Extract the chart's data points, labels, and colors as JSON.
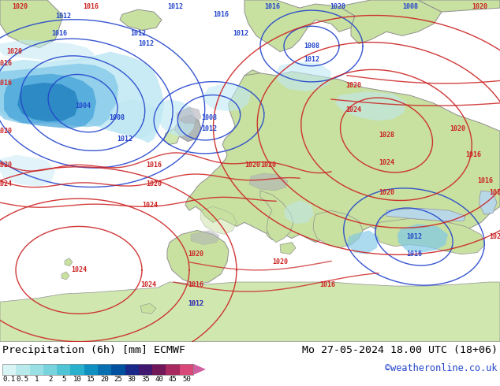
{
  "title_left": "Precipitation (6h) [mm] ECMWF",
  "title_right": "Mo 27-05-2024 18.00 UTC (18+06)",
  "watermark": "©weatheronline.co.uk",
  "colorbar_labels": [
    "0.1",
    "0.5",
    "1",
    "2",
    "5",
    "10",
    "15",
    "20",
    "25",
    "30",
    "35",
    "40",
    "45",
    "50"
  ],
  "colorbar_colors": [
    "#d8f4f4",
    "#b8eaec",
    "#98e0e4",
    "#78d4dc",
    "#50c4d4",
    "#28b0cc",
    "#1090c0",
    "#0870b0",
    "#0050a0",
    "#1a2888",
    "#401870",
    "#701858",
    "#a82860",
    "#d84878",
    "#f06898",
    "#ff80b8"
  ],
  "ocean_color": "#e8eef0",
  "land_color": "#c8e0a0",
  "land_color2": "#d0e8b0",
  "coast_color": "#909090",
  "precip_light": "#c0e8f4",
  "precip_medium": "#80c8e8",
  "precip_heavy": "#40a0d8",
  "precip_vheavy": "#1878b8",
  "isobar_blue": "#2244cc",
  "isobar_red": "#cc2222",
  "label_fontsize": 6.0,
  "bottom_bg": "#ffffff",
  "text_color": "#000000",
  "watermark_color": "#2244cc"
}
